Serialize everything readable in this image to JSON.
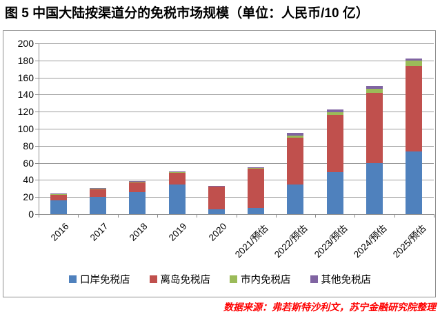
{
  "title": "图 5 中国大陆按渠道分的免税市场规模（单位：人民币/10 亿）",
  "source": "数据来源：弗若斯特沙利文，苏宁金融研究院整理",
  "colors": {
    "port": "#4F81BD",
    "island": "#C0504D",
    "city": "#9BBB59",
    "other": "#8064A2",
    "gridline": "#9a9a9a",
    "source_text": "#fe0000"
  },
  "chart_data": {
    "type": "bar",
    "stacked": true,
    "title": "中国大陆按渠道分的免税市场规模",
    "unit": "人民币/10 亿",
    "categories": [
      "2016",
      "2017",
      "2018",
      "2019",
      "2020",
      "2021/预估",
      "2022/预估",
      "2023/预估",
      "2024/预估",
      "2025/预估"
    ],
    "series": [
      {
        "name": "口岸免税店",
        "color": "#4F81BD",
        "values": [
          16.5,
          20,
          26,
          34.5,
          6,
          7.5,
          35,
          49,
          59.5,
          73
        ]
      },
      {
        "name": "离岛免税店",
        "color": "#C0504D",
        "values": [
          7,
          10,
          12,
          14,
          26.5,
          46.5,
          54.5,
          67,
          82.5,
          100
        ]
      },
      {
        "name": "市内免税店",
        "color": "#9BBB59",
        "values": [
          0.2,
          0.2,
          0.3,
          0.8,
          0.4,
          0.3,
          2.5,
          3.5,
          5,
          6.5
        ]
      },
      {
        "name": "其他免税店",
        "color": "#8064A2",
        "values": [
          0.4,
          0.5,
          0.5,
          0.8,
          0.3,
          0.5,
          3,
          3,
          3,
          3
        ]
      }
    ],
    "totals": [
      24.1,
      30.7,
      38.8,
      50.1,
      33.2,
      54.8,
      95,
      122.5,
      150,
      182.5
    ],
    "ylim": [
      0,
      200
    ],
    "ytick_step": 20,
    "grid": true,
    "legend_position": "bottom"
  }
}
